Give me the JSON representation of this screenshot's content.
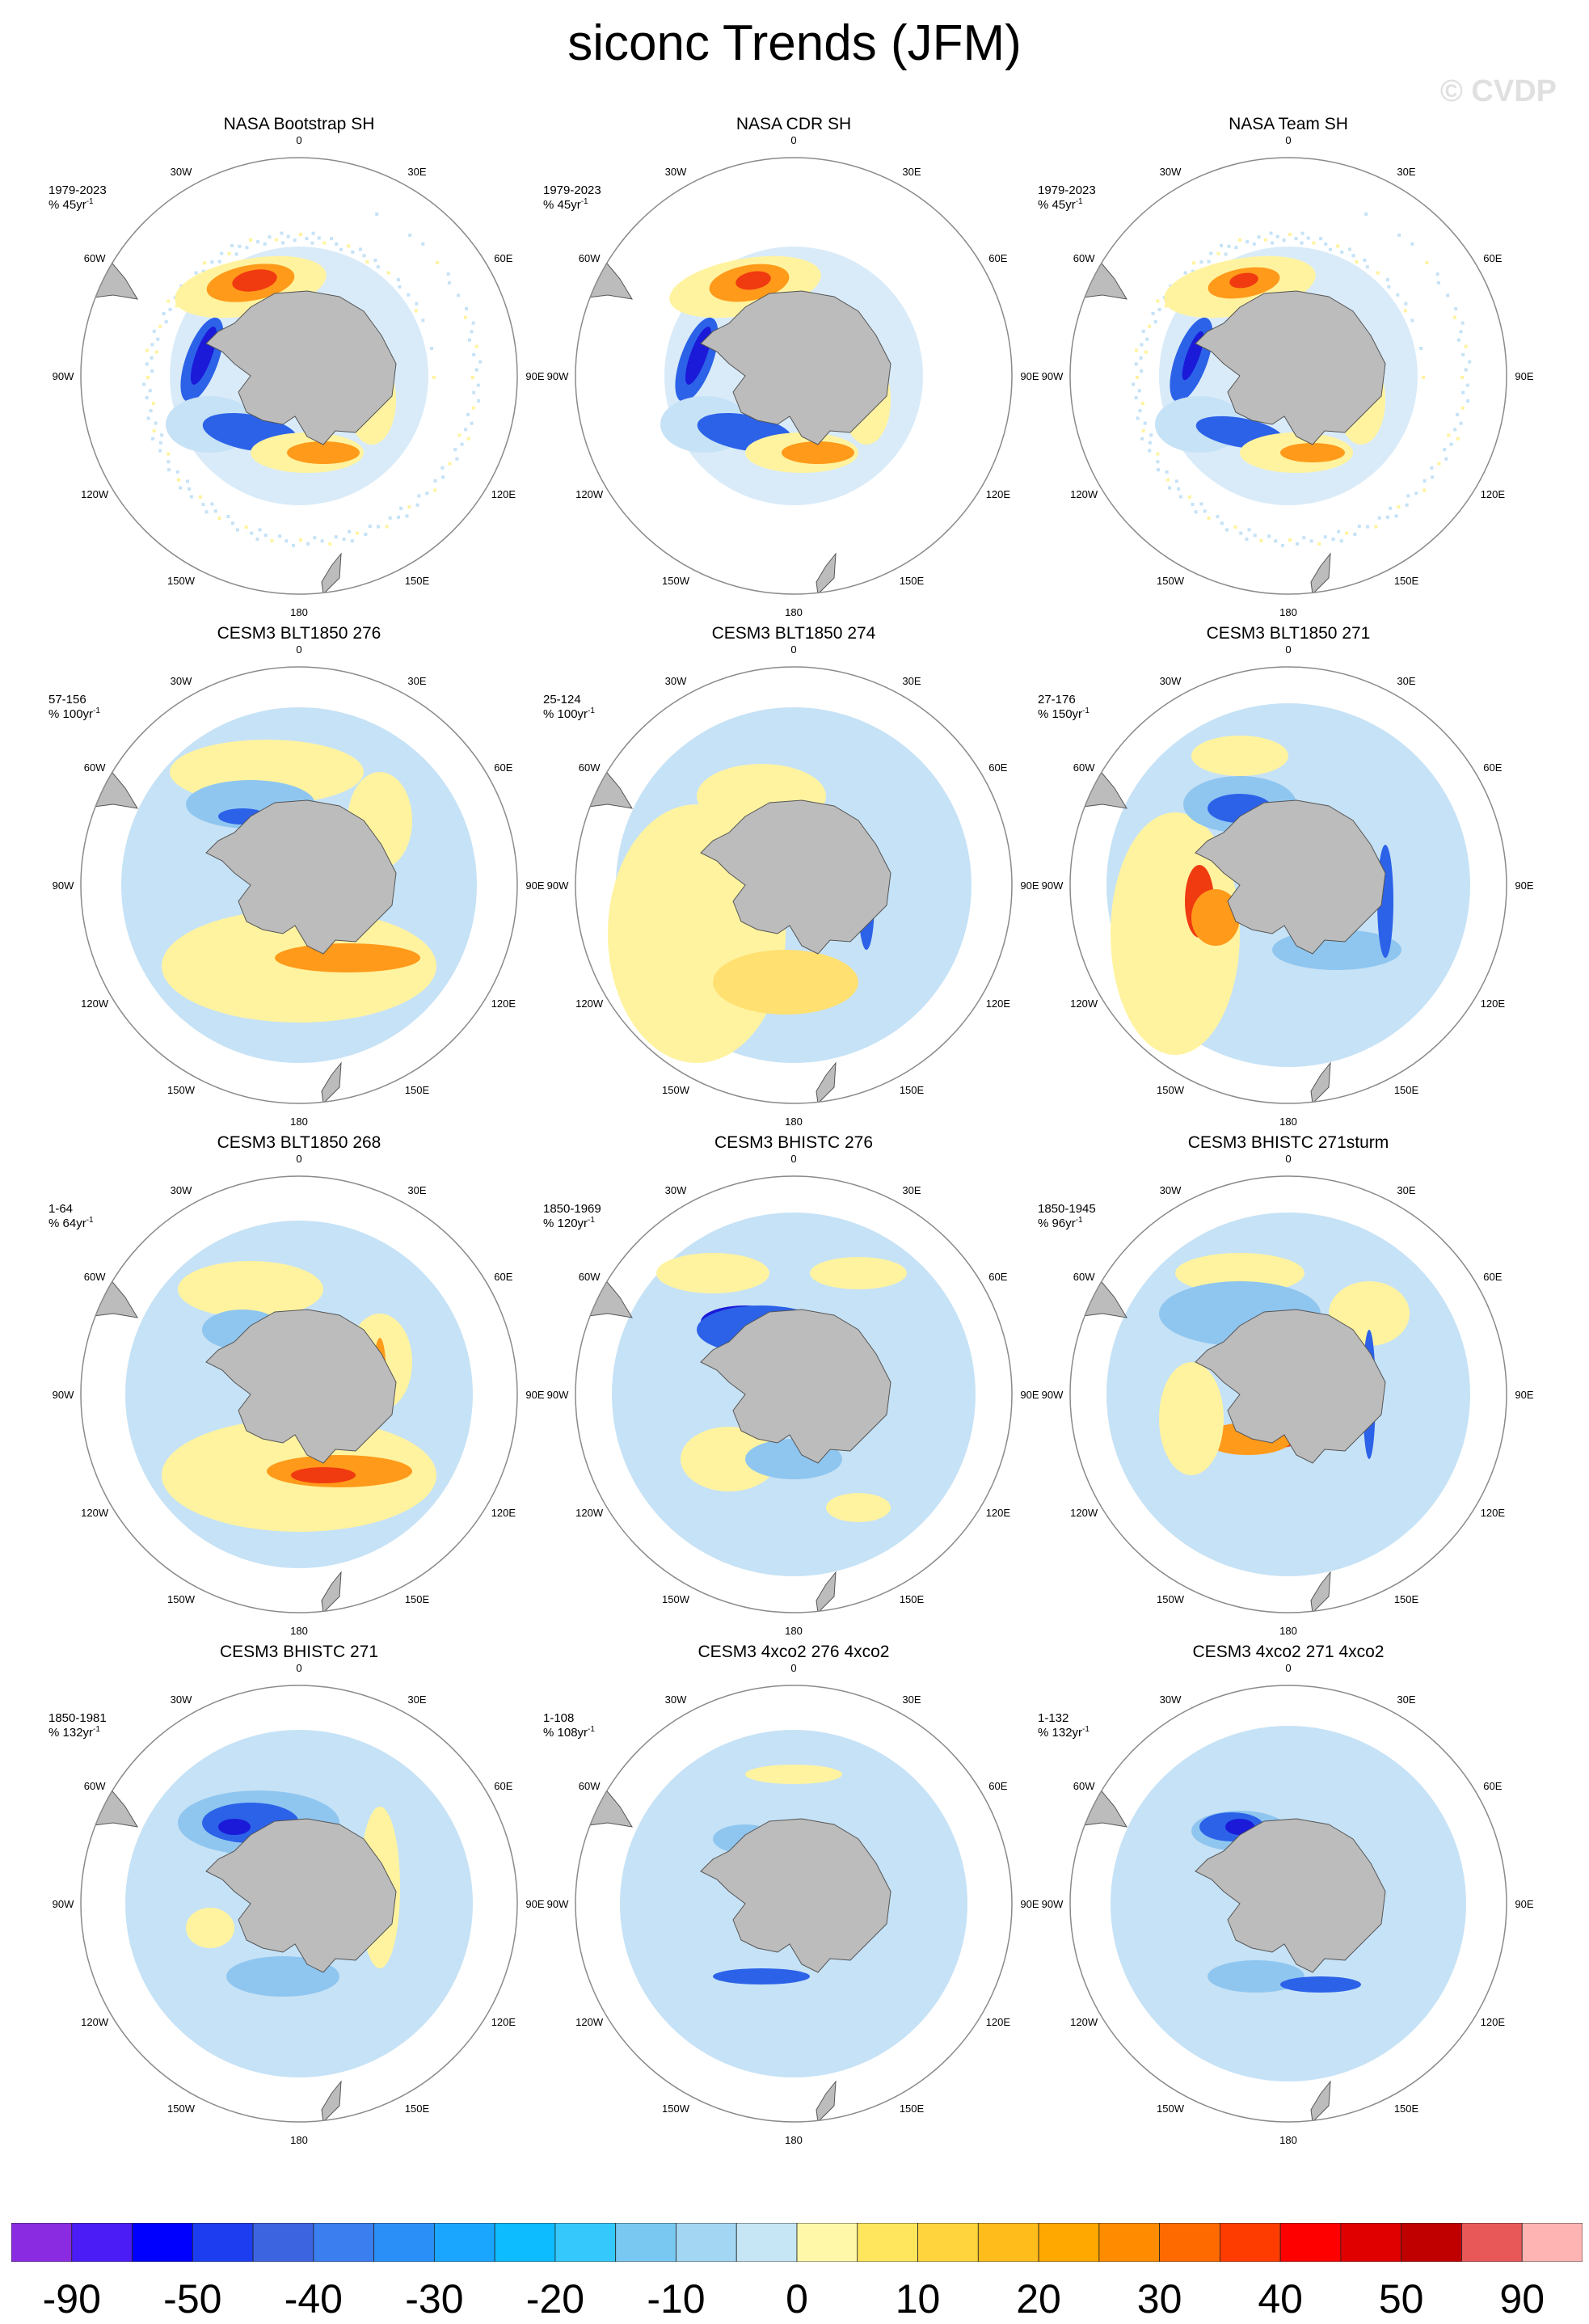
{
  "title": "siconc Trends (JFM)",
  "watermark": "© CVDP",
  "panels": [
    {
      "title": "NASA Bootstrap SH",
      "period": "1979-2023",
      "units": "% 45yr",
      "pattern": "obs1"
    },
    {
      "title": "NASA CDR SH",
      "period": "1979-2023",
      "units": "% 45yr",
      "pattern": "obs2"
    },
    {
      "title": "NASA Team SH",
      "period": "1979-2023",
      "units": "% 45yr",
      "pattern": "obs3"
    },
    {
      "title": "CESM3 BLT1850 276",
      "period": "57-156",
      "units": "% 100yr",
      "pattern": "m1"
    },
    {
      "title": "CESM3 BLT1850 274",
      "period": "25-124",
      "units": "% 100yr",
      "pattern": "m2"
    },
    {
      "title": "CESM3 BLT1850 271",
      "period": "27-176",
      "units": "% 150yr",
      "pattern": "m3"
    },
    {
      "title": "CESM3 BLT1850 268",
      "period": "1-64",
      "units": "% 64yr",
      "pattern": "m4"
    },
    {
      "title": "CESM3 BHISTC 276",
      "period": "1850-1969",
      "units": "% 120yr",
      "pattern": "m5"
    },
    {
      "title": "CESM3 BHISTC 271sturm",
      "period": "1850-1945",
      "units": "% 96yr",
      "pattern": "m6"
    },
    {
      "title": "CESM3 BHISTC 271",
      "period": "1850-1981",
      "units": "% 132yr",
      "pattern": "m7"
    },
    {
      "title": "CESM3 4xco2 276 4xco2",
      "period": "1-108",
      "units": "% 108yr",
      "pattern": "m8"
    },
    {
      "title": "CESM3 4xco2 271 4xco2",
      "period": "1-132",
      "units": "% 132yr",
      "pattern": "m9"
    }
  ],
  "lon_labels": [
    "0",
    "30E",
    "60E",
    "90E",
    "120E",
    "150E",
    "180",
    "150W",
    "120W",
    "90W",
    "60W",
    "30W"
  ],
  "units_superscript": "-1",
  "colorbar": {
    "colors": [
      "#8a2be2",
      "#4b1cf5",
      "#0000ff",
      "#1c3ef0",
      "#3c64e0",
      "#3a7ef0",
      "#2a90f8",
      "#1aa6ff",
      "#0cbcff",
      "#34c8fc",
      "#78c8f2",
      "#a2d6f2",
      "#c6e6f6",
      "#fff8a8",
      "#ffe65c",
      "#ffd43c",
      "#ffbc1a",
      "#ffa800",
      "#ff8c00",
      "#ff6a00",
      "#ff3c00",
      "#ff0000",
      "#e00000",
      "#c00000",
      "#e85858",
      "#ffb4b4"
    ],
    "labels": [
      "-90",
      "-50",
      "-40",
      "-30",
      "-20",
      "-10",
      "0",
      "10",
      "20",
      "30",
      "40",
      "50",
      "90"
    ]
  }
}
